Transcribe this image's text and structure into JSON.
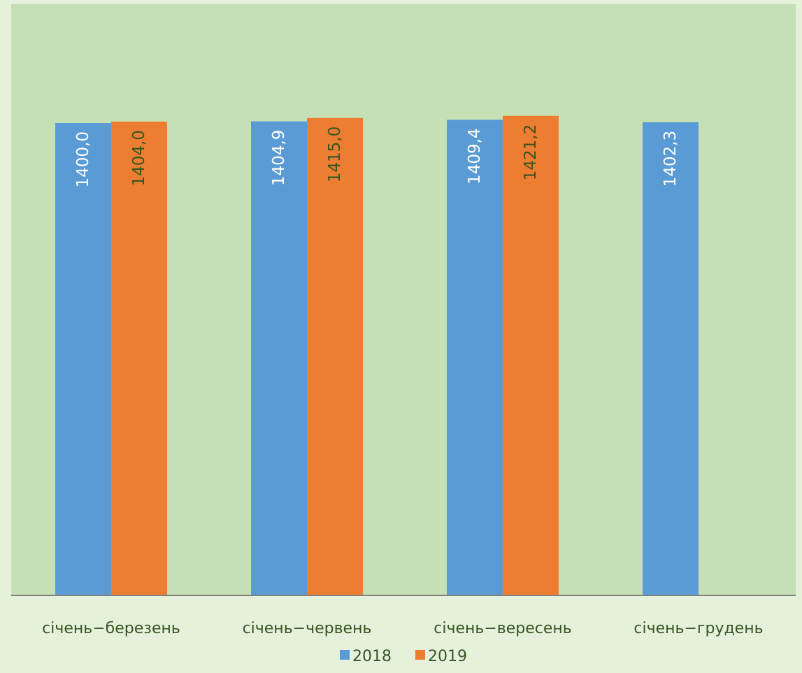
{
  "chart_data": {
    "type": "bar",
    "categories": [
      "січень−березень",
      "січень−червень",
      "січень−вересень",
      "січень−грудень"
    ],
    "series": [
      {
        "name": "2018",
        "values": [
          1400.0,
          1404.9,
          1409.4,
          1402.3
        ],
        "labels": [
          "1400,0",
          "1404,9",
          "1409,4",
          "1402,3"
        ],
        "color": "#5b9bd5",
        "label_color": "#ffffff"
      },
      {
        "name": "2019",
        "values": [
          1404.0,
          1415.0,
          1421.2,
          null
        ],
        "labels": [
          "1404,0",
          "1415,0",
          "1421,2",
          ""
        ],
        "color": "#ed7d31",
        "label_color": "#375623"
      }
    ],
    "legend_position": "bottom",
    "grid": false,
    "y_axis_visible": false,
    "data_labels": "inside-end-vertical",
    "colors": {
      "page_background": "#e6f1dc",
      "plot_background": "#c5e0b4",
      "axis": "#808080",
      "category_label": "#375623"
    }
  }
}
